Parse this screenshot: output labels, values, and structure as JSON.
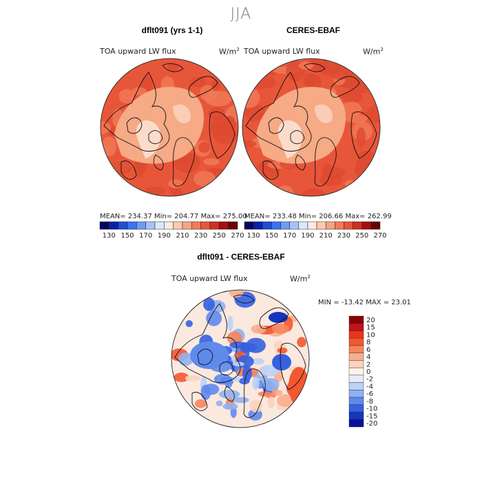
{
  "season": "JJA",
  "colors": {
    "ocean_a": "#e8563a",
    "ocean_b": "#f07a58",
    "land_mid": "#f6aa86",
    "land_light": "#fbdccb",
    "coast": "#111111"
  },
  "chart_data": [
    {
      "type": "heatmap",
      "title": "dflt091 (yrs 1-1)",
      "variable_label": "TOA upward LW flux",
      "units_base": "W/m",
      "units_exp": "2",
      "stats_text": "MEAN= 234.37   Min= 204.77   Max= 275.00",
      "mean": 234.37,
      "min": 204.77,
      "max": 275.0,
      "colorbar": {
        "colors": [
          "#06065f",
          "#0c1faa",
          "#1f4dd8",
          "#3b73ee",
          "#6e9bf3",
          "#a8c4f7",
          "#dbe8fb",
          "#fdebe0",
          "#fbcab1",
          "#f7a383",
          "#f27b5a",
          "#e9553a",
          "#d22f1f",
          "#a50f0f",
          "#6a0000"
        ],
        "tick_labels": [
          "130",
          "150",
          "170",
          "190",
          "210",
          "230",
          "250",
          "270"
        ]
      }
    },
    {
      "type": "heatmap",
      "title": "CERES-EBAF",
      "variable_label": "TOA upward LW flux",
      "units_base": "W/m",
      "units_exp": "2",
      "stats_text": "MEAN= 233.48   Min= 206.66   Max= 262.99",
      "mean": 233.48,
      "min": 206.66,
      "max": 262.99,
      "colorbar": {
        "colors": [
          "#06065f",
          "#0c1faa",
          "#1f4dd8",
          "#3b73ee",
          "#6e9bf3",
          "#a8c4f7",
          "#dbe8fb",
          "#fdebe0",
          "#fbcab1",
          "#f7a383",
          "#f27b5a",
          "#e9553a",
          "#d22f1f",
          "#a50f0f",
          "#6a0000"
        ],
        "tick_labels": [
          "130",
          "150",
          "170",
          "190",
          "210",
          "230",
          "250",
          "270"
        ]
      }
    },
    {
      "type": "heatmap",
      "title": "dflt091 - CERES-EBAF",
      "variable_label": "TOA upward LW flux",
      "units_base": "W/m",
      "units_exp": "2",
      "stats_text": "MIN = -13.42 MAX =  23.01",
      "min": -13.42,
      "max": 23.01,
      "colorbar": {
        "colors": [
          "#8b0000",
          "#c1121f",
          "#e8341c",
          "#f4572f",
          "#f7845e",
          "#f9ae8f",
          "#fbd3bf",
          "#fff2ea",
          "#e3ecfb",
          "#bcd1f6",
          "#90b1f0",
          "#5f8aec",
          "#3561e0",
          "#1534c0",
          "#07119a"
        ],
        "tick_labels": [
          "20",
          "15",
          "10",
          "8",
          "6",
          "4",
          "2",
          "0",
          "-2",
          "-4",
          "-6",
          "-8",
          "-10",
          "-15",
          "-20"
        ]
      }
    }
  ]
}
